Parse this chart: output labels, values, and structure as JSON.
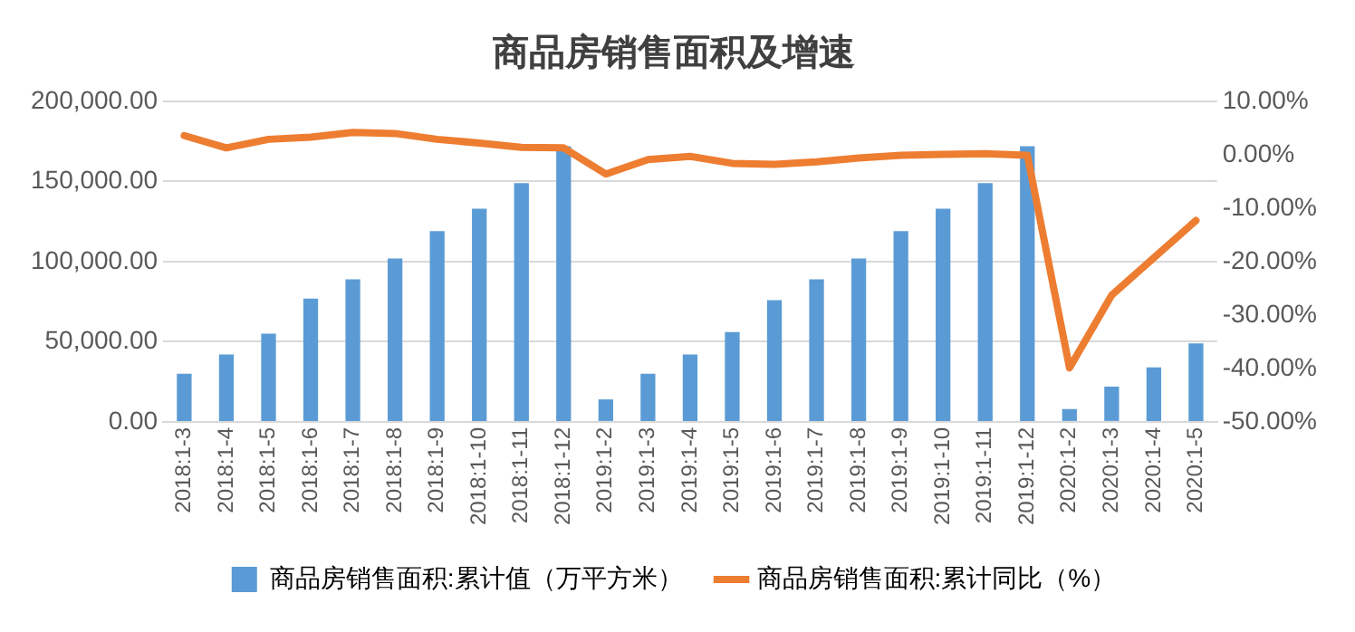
{
  "chart_data": {
    "type": "bar",
    "title": "商品房销售面积及增速",
    "categories": [
      "2018:1-3",
      "2018:1-4",
      "2018:1-5",
      "2018:1-6",
      "2018:1-7",
      "2018:1-8",
      "2018:1-9",
      "2018:1-10",
      "2018:1-11",
      "2018:1-12",
      "2019:1-2",
      "2019:1-3",
      "2019:1-4",
      "2019:1-5",
      "2019:1-6",
      "2019:1-7",
      "2019:1-8",
      "2019:1-9",
      "2019:1-10",
      "2019:1-11",
      "2019:1-12",
      "2020:1-2",
      "2020:1-3",
      "2020:1-4",
      "2020:1-5"
    ],
    "series": [
      {
        "name": "商品房销售面积:累计值（万平方米）",
        "color": "#5b9bd5",
        "values": [
          30000,
          42000,
          55000,
          77000,
          89000,
          102000,
          119000,
          133000,
          149000,
          172000,
          14000,
          30000,
          42000,
          56000,
          76000,
          89000,
          102000,
          119000,
          133000,
          149000,
          172000,
          8000,
          22000,
          34000,
          49000
        ]
      },
      {
        "name": "商品房销售面积:累计同比（%）",
        "type": "line",
        "axis": "y2",
        "color": "#ed7d31",
        "values": [
          3.6,
          1.3,
          2.9,
          3.3,
          4.2,
          4.0,
          2.9,
          2.2,
          1.4,
          1.3,
          -3.6,
          -0.9,
          -0.3,
          -1.6,
          -1.8,
          -1.3,
          -0.6,
          -0.1,
          0.1,
          0.2,
          -0.1,
          -39.9,
          -26.3,
          -19.3,
          -12.3
        ]
      }
    ],
    "ylim": [
      0,
      200000
    ],
    "yticks": [
      {
        "value": 0,
        "label": "0.00"
      },
      {
        "value": 50000,
        "label": "50,000.00"
      },
      {
        "value": 100000,
        "label": "100,000.00"
      },
      {
        "value": 150000,
        "label": "150,000.00"
      },
      {
        "value": 200000,
        "label": "200,000.00"
      }
    ],
    "y2lim": [
      -50,
      10
    ],
    "y2ticks": [
      {
        "value": -50,
        "label": "-50.00%"
      },
      {
        "value": -40,
        "label": "-40.00%"
      },
      {
        "value": -30,
        "label": "-30.00%"
      },
      {
        "value": -20,
        "label": "-20.00%"
      },
      {
        "value": -10,
        "label": "-10.00%"
      },
      {
        "value": 0,
        "label": "0.00%"
      },
      {
        "value": 10,
        "label": "10.00%"
      }
    ],
    "grid": "y",
    "legend": "bottom",
    "marker": "none",
    "line_style": "solid"
  }
}
